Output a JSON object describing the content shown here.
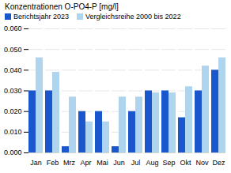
{
  "chart_data": {
    "type": "bar",
    "title": "Konzentrationen O-PO4-P [mg/l]",
    "categories": [
      "Jan",
      "Feb",
      "Mrz",
      "Apr",
      "Mai",
      "Jun",
      "Jul",
      "Aug",
      "Sep",
      "Okt",
      "Nov",
      "Dez"
    ],
    "series": [
      {
        "name": "Berichtsjahr 2023",
        "color": "#1a56cc",
        "values": [
          0.03,
          0.03,
          0.003,
          0.02,
          0.02,
          0.003,
          0.02,
          0.03,
          0.03,
          0.017,
          0.03,
          0.04
        ]
      },
      {
        "name": "Vergleichsreihe 2000 bis 2022",
        "color": "#aed4ee",
        "values": [
          0.046,
          0.039,
          0.027,
          0.015,
          0.015,
          0.027,
          0.027,
          0.029,
          0.029,
          0.032,
          0.042,
          0.046
        ]
      }
    ],
    "ylim": [
      0,
      0.06
    ],
    "yticks": [
      {
        "value": 0.0,
        "label": "0.000"
      },
      {
        "value": 0.01,
        "label": "0.010"
      },
      {
        "value": 0.02,
        "label": "0.020"
      },
      {
        "value": 0.03,
        "label": "0.030"
      },
      {
        "value": 0.04,
        "label": "0.040"
      },
      {
        "value": 0.05,
        "label": "0.050"
      },
      {
        "value": 0.06,
        "label": "0.060"
      }
    ],
    "grid": true,
    "legend": "top"
  }
}
